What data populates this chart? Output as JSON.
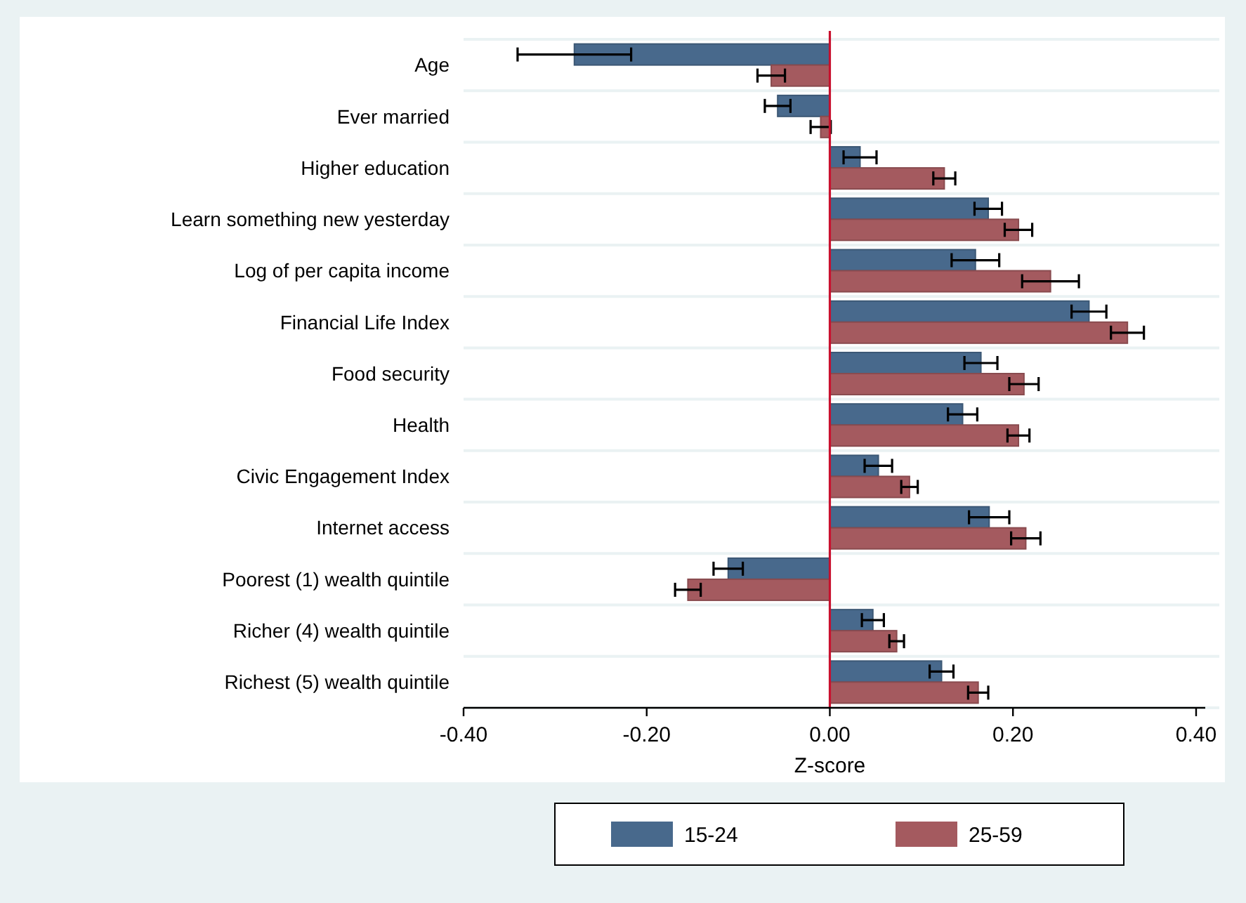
{
  "chart_data": {
    "type": "bar",
    "orientation": "horizontal",
    "xlabel": "Z-score",
    "categories": [
      "Age",
      "Ever married",
      "Higher education",
      "Learn something new yesterday",
      "Log of per capita income",
      "Financial Life Index",
      "Food security",
      "Health",
      "Civic Engagement Index",
      "Internet access",
      "Poorest (1) wealth quintile",
      "Richer (4) wealth quintile",
      "Richest (5) wealth quintile"
    ],
    "series": [
      {
        "name": "15-24",
        "color": "#48698c",
        "values": [
          -0.279,
          -0.057,
          0.033,
          0.173,
          0.159,
          0.283,
          0.165,
          0.145,
          0.053,
          0.174,
          -0.111,
          0.047,
          0.122
        ],
        "errors": [
          0.062,
          0.014,
          0.018,
          0.015,
          0.026,
          0.019,
          0.018,
          0.016,
          0.015,
          0.022,
          0.016,
          0.012,
          0.013
        ]
      },
      {
        "name": "25-59",
        "color": "#a45a5f",
        "values": [
          -0.064,
          -0.01,
          0.125,
          0.206,
          0.241,
          0.325,
          0.212,
          0.206,
          0.087,
          0.214,
          -0.155,
          0.073,
          0.162
        ],
        "errors": [
          0.015,
          0.011,
          0.012,
          0.015,
          0.031,
          0.018,
          0.016,
          0.012,
          0.009,
          0.016,
          0.014,
          0.008,
          0.011
        ]
      }
    ],
    "xlim": [
      -0.4,
      0.41
    ],
    "xticks": [
      {
        "value": -0.4,
        "label": "-0.40"
      },
      {
        "value": -0.2,
        "label": "-0.20"
      },
      {
        "value": 0,
        "label": "0.00"
      },
      {
        "value": 0.2,
        "label": "0.20"
      },
      {
        "value": 0.4,
        "label": "0.40"
      }
    ],
    "ref_lines": [
      {
        "axis": "x",
        "value": 0,
        "color": "#c8102e"
      }
    ],
    "grid": "y",
    "legend": "bottom"
  }
}
